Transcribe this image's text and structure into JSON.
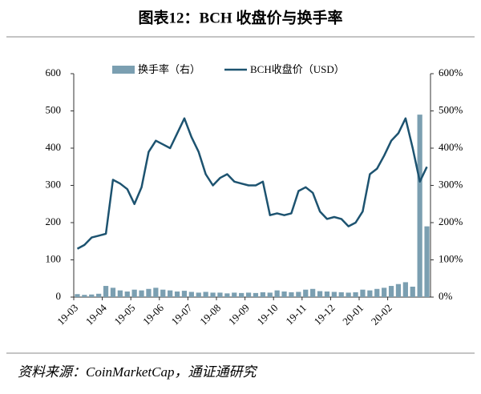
{
  "chart_data": {
    "type": "combo",
    "title": "图表12：BCH 收盘价与换手率",
    "source": "资料来源：CoinMarketCap，通证通研究",
    "categories": [
      "19-03",
      null,
      null,
      null,
      "19-04",
      null,
      null,
      null,
      "19-05",
      null,
      null,
      null,
      "19-06",
      null,
      null,
      null,
      "19-07",
      null,
      null,
      null,
      "19-08",
      null,
      null,
      null,
      "19-09",
      null,
      null,
      null,
      "19-10",
      null,
      null,
      null,
      "19-11",
      null,
      null,
      null,
      "19-12",
      null,
      null,
      null,
      "20-01",
      null,
      null,
      null,
      "20-02",
      null,
      null,
      null,
      null,
      null
    ],
    "series": [
      {
        "name": "换手率（右）",
        "type": "bar",
        "axis": "y2",
        "color": "#7b9fb1",
        "values": [
          8,
          6,
          7,
          9,
          30,
          25,
          18,
          15,
          20,
          18,
          22,
          25,
          20,
          18,
          15,
          17,
          14,
          12,
          14,
          12,
          12,
          10,
          12,
          11,
          12,
          11,
          13,
          12,
          18,
          15,
          13,
          14,
          20,
          22,
          16,
          15,
          14,
          13,
          12,
          13,
          20,
          18,
          22,
          25,
          30,
          35,
          40,
          28,
          490,
          190
        ]
      },
      {
        "name": "BCH收盘价（USD）",
        "type": "line",
        "color": "#1d5370",
        "values": [
          130,
          140,
          160,
          165,
          170,
          315,
          305,
          290,
          250,
          295,
          390,
          420,
          410,
          400,
          440,
          480,
          430,
          390,
          330,
          300,
          320,
          330,
          310,
          305,
          300,
          300,
          310,
          220,
          225,
          220,
          225,
          285,
          295,
          280,
          230,
          210,
          215,
          210,
          190,
          200,
          230,
          330,
          345,
          380,
          420,
          440,
          480,
          400,
          310,
          350
        ]
      }
    ],
    "ylim": [
      0,
      600
    ],
    "yticks": [
      0,
      100,
      200,
      300,
      400,
      500,
      600
    ],
    "y2lim": [
      0,
      600
    ],
    "y2ticks": [
      {
        "value": 0,
        "label": "0%"
      },
      {
        "value": 100,
        "label": "100%"
      },
      {
        "value": 200,
        "label": "200%"
      },
      {
        "value": 300,
        "label": "300%"
      },
      {
        "value": 400,
        "label": "400%"
      },
      {
        "value": 500,
        "label": "500%"
      },
      {
        "value": 600,
        "label": "600%"
      }
    ]
  }
}
